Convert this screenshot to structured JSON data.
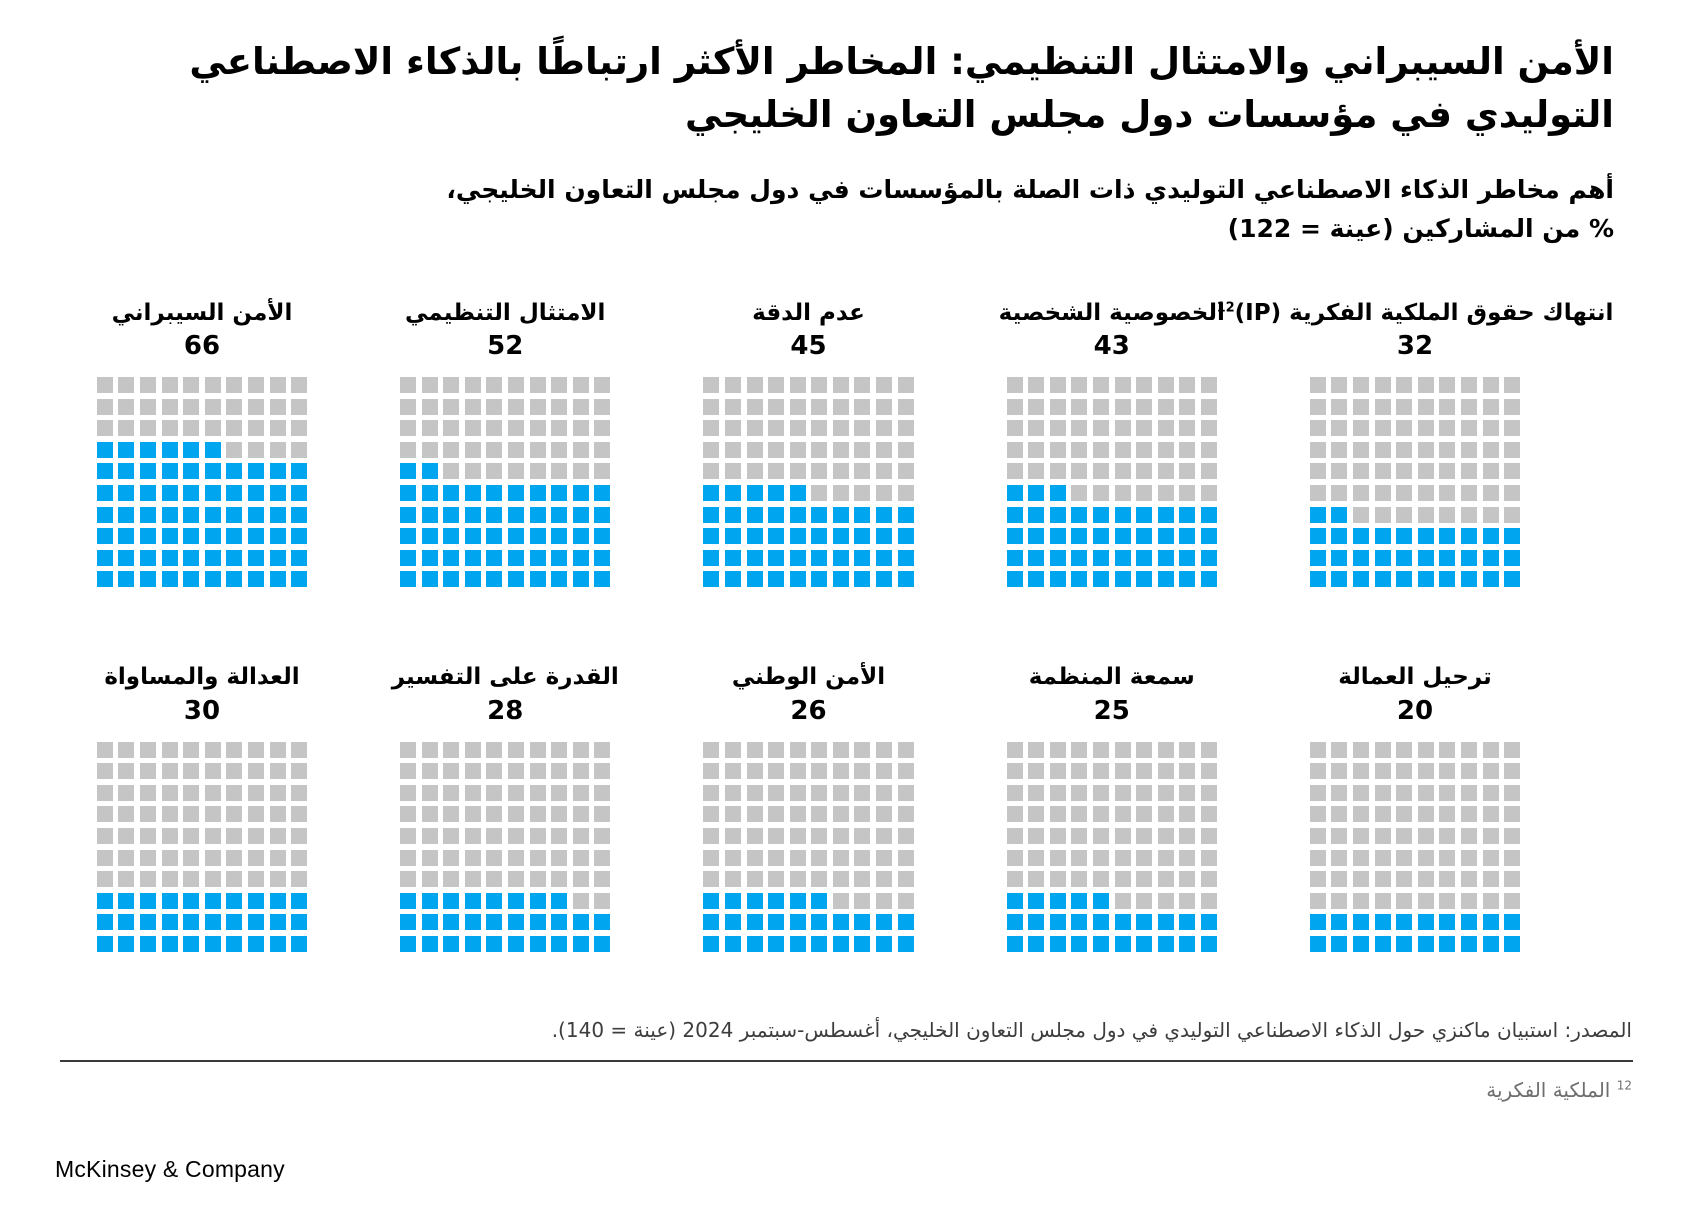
{
  "page": {
    "title": "الأمن السيبراني والامتثال التنظيمي: المخاطر الأكثر ارتباطًا بالذكاء الاصطناعي التوليدي في مؤسسات دول مجلس التعاون الخليجي",
    "subtitle_line1": "أهم مخاطر الذكاء الاصطناعي التوليدي ذات الصلة بالمؤسسات في دول مجلس التعاون الخليجي،",
    "subtitle_line2": "% من المشاركين (عينة = 122)",
    "source": "المصدر: استبيان ماكنزي حول الذكاء الاصطناعي التوليدي في دول مجلس التعاون الخليجي، أغسطس-سبتمبر 2024 (عينة = 140).",
    "footnote_marker": "12",
    "footnote_text": "الملكية الفكرية",
    "logo": "McKinsey & Company"
  },
  "colors": {
    "filled_square": "#00a5f0",
    "empty_square": "#c5c5c5"
  },
  "chart_data": {
    "type": "waffle",
    "grid_rows": 10,
    "grid_cols": 10,
    "total_per_chart": 100,
    "fill_direction": "bottom-up, partial row left-aligned",
    "unit_label": "% من المشاركين (عينة = 122)",
    "series": [
      {
        "label": "الأمن السيبراني",
        "value": 66
      },
      {
        "label": "الامتثال التنظيمي",
        "value": 52
      },
      {
        "label": "عدم الدقة",
        "value": 45
      },
      {
        "label": "الخصوصية الشخصية",
        "value": 43
      },
      {
        "label": "انتهاك حقوق الملكية الفكرية (IP)",
        "footnote_marker": "12",
        "value": 32
      },
      {
        "label": "العدالة والمساواة",
        "value": 30
      },
      {
        "label": "القدرة على التفسير",
        "value": 28
      },
      {
        "label": "الأمن الوطني",
        "value": 26
      },
      {
        "label": "سمعة المنظمة",
        "value": 25
      },
      {
        "label": "ترحيل العمالة",
        "value": 20
      }
    ]
  }
}
